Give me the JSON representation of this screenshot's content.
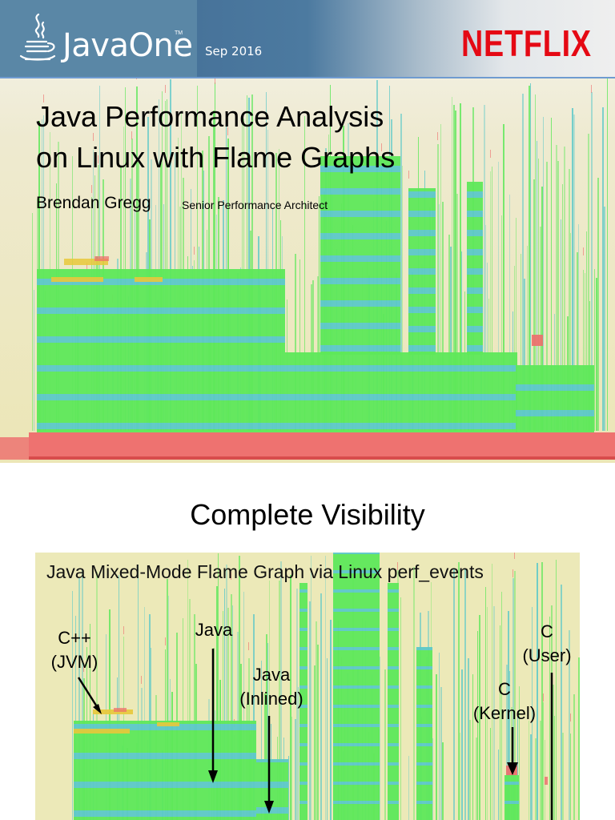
{
  "slide1": {
    "header": {
      "event_logo": "JavaOne",
      "event_logo_tm": "TM",
      "date": "Sep 2016",
      "company_logo": "NETFLIX",
      "colors": {
        "header_blue": "#5a87a6",
        "header_dark_blue": "#47739a",
        "netflix_red": "#e50914",
        "rule_blue": "#6f9bd0"
      }
    },
    "title_line1": "Java Performance Analysis",
    "title_line2": "on Linux with Flame Graphs",
    "author": "Brendan Gregg",
    "author_role": "Senior Performance Architect",
    "background": "flame-graph",
    "flame_colors": {
      "java": "#5ee85a",
      "inlined": "#5cc8c8",
      "jvm": "#e8c83a",
      "kernel": "#ee6b6b",
      "background": "#ece6b6"
    }
  },
  "slide2": {
    "title": "Complete Visibility",
    "panel_title": "Java Mixed-Mode Flame Graph via Linux perf_events",
    "annotations": [
      {
        "label_line1": "C++",
        "label_line2": "(JVM)"
      },
      {
        "label_line1": "Java",
        "label_line2": ""
      },
      {
        "label_line1": "Java",
        "label_line2": "(Inlined)"
      },
      {
        "label_line1": "C",
        "label_line2": "(Kernel)"
      },
      {
        "label_line1": "C",
        "label_line2": "(User)"
      }
    ]
  }
}
